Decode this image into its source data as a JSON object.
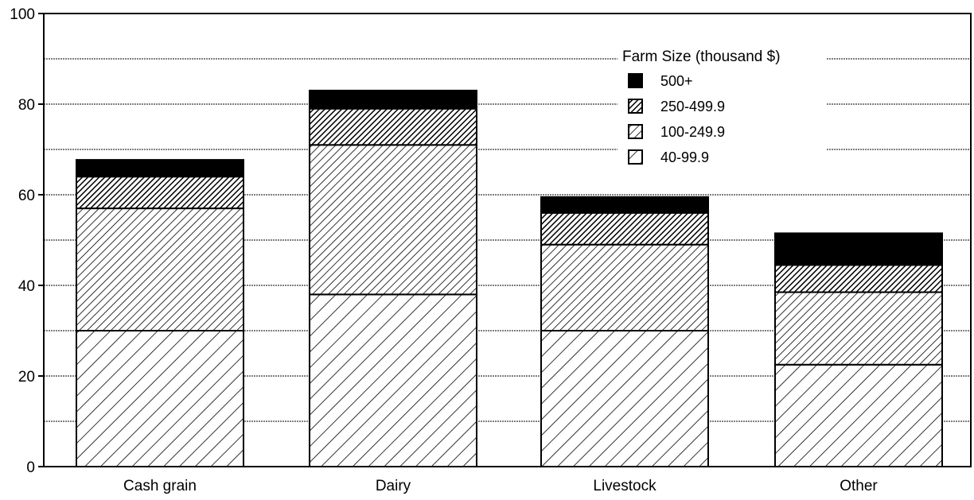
{
  "chart_data": {
    "type": "bar",
    "stacked": true,
    "categories": [
      "Cash grain",
      "Dairy",
      "Livestock",
      "Other"
    ],
    "series": [
      {
        "name": "40-99.9",
        "values": [
          30,
          38,
          30,
          22.5
        ],
        "pattern": "hatch-light"
      },
      {
        "name": "100-249.9",
        "values": [
          27,
          33,
          19,
          16
        ],
        "pattern": "hatch-medium"
      },
      {
        "name": "250-499.9",
        "values": [
          7,
          8,
          7,
          6
        ],
        "pattern": "hatch-dense"
      },
      {
        "name": "500+",
        "values": [
          3.7,
          4,
          3.5,
          7
        ],
        "pattern": "solid"
      }
    ],
    "ylim": [
      0,
      100
    ],
    "yticks": [
      "0",
      "20",
      "40",
      "60",
      "80",
      "100"
    ],
    "grid": true,
    "legend": {
      "title": "Farm Size (thousand $)",
      "placement": "top-right",
      "order": [
        "500+",
        "250-499.9",
        "100-249.9",
        "40-99.9"
      ]
    },
    "title": "",
    "xlabel": "",
    "ylabel": ""
  }
}
